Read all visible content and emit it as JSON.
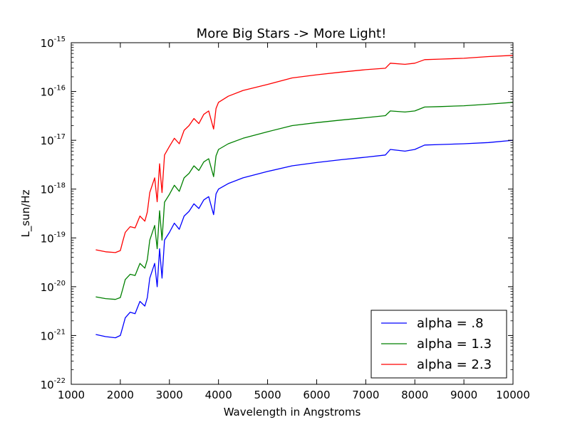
{
  "chart_data": {
    "type": "line",
    "title": "More Big Stars -> More Light!",
    "xlabel": "Wavelength in Angstroms",
    "ylabel": "L_sun/Hz",
    "xlim": [
      1000,
      10000
    ],
    "ylim": [
      1e-22,
      1e-15
    ],
    "yscale": "log",
    "grid": false,
    "legend_position": "bottom-right",
    "xticks": [
      1000,
      2000,
      3000,
      4000,
      5000,
      6000,
      7000,
      8000,
      9000,
      10000
    ],
    "xtick_labels": [
      "1000",
      "2000",
      "3000",
      "4000",
      "5000",
      "6000",
      "7000",
      "8000",
      "9000",
      "10000"
    ],
    "yticks": [
      {
        "base": "10",
        "exp": "-22",
        "value": 1e-22
      },
      {
        "base": "10",
        "exp": "-21",
        "value": 1e-21
      },
      {
        "base": "10",
        "exp": "-20",
        "value": 1e-20
      },
      {
        "base": "10",
        "exp": "-19",
        "value": 1e-19
      },
      {
        "base": "10",
        "exp": "-18",
        "value": 1e-18
      },
      {
        "base": "10",
        "exp": "-17",
        "value": 1e-17
      },
      {
        "base": "10",
        "exp": "-16",
        "value": 1e-16
      },
      {
        "base": "10",
        "exp": "-15",
        "value": 1e-15
      }
    ],
    "x": [
      1500,
      1700,
      1900,
      2000,
      2050,
      2100,
      2200,
      2300,
      2400,
      2500,
      2550,
      2600,
      2700,
      2750,
      2800,
      2850,
      2900,
      3000,
      3100,
      3200,
      3300,
      3400,
      3500,
      3600,
      3700,
      3800,
      3900,
      3950,
      4000,
      4200,
      4500,
      5000,
      5500,
      6000,
      6500,
      7000,
      7400,
      7500,
      7800,
      8000,
      8200,
      8500,
      9000,
      9500,
      10000
    ],
    "series": [
      {
        "name": "alpha = .8",
        "color": "#0000ff",
        "values": [
          1.05e-21,
          9.5e-22,
          9e-22,
          1e-21,
          1.5e-21,
          2.3e-21,
          3e-21,
          2.8e-21,
          5e-21,
          4e-21,
          6e-21,
          1.5e-20,
          3e-20,
          1e-20,
          6e-20,
          1.5e-20,
          9e-20,
          1.3e-19,
          2e-19,
          1.5e-19,
          2.8e-19,
          3.5e-19,
          5e-19,
          4e-19,
          6e-19,
          7e-19,
          3e-19,
          8e-19,
          1e-18,
          1.3e-18,
          1.7e-18,
          2.3e-18,
          3e-18,
          3.5e-18,
          4e-18,
          4.5e-18,
          5e-18,
          6.5e-18,
          6e-18,
          6.5e-18,
          8e-18,
          8.2e-18,
          8.5e-18,
          9e-18,
          1e-17
        ]
      },
      {
        "name": "alpha = 1.3",
        "color": "#008000",
        "values": [
          6.2e-21,
          5.7e-21,
          5.5e-21,
          6e-21,
          9e-21,
          1.4e-20,
          1.8e-20,
          1.7e-20,
          3e-20,
          2.4e-20,
          3.6e-20,
          9e-20,
          1.8e-19,
          6e-20,
          3.6e-19,
          9e-20,
          5.4e-19,
          7.8e-19,
          1.2e-18,
          9e-19,
          1.7e-18,
          2.1e-18,
          3e-18,
          2.4e-18,
          3.6e-18,
          4.2e-18,
          1.8e-18,
          4.8e-18,
          6.5e-18,
          8.5e-18,
          1.1e-17,
          1.5e-17,
          2e-17,
          2.3e-17,
          2.6e-17,
          2.9e-17,
          3.2e-17,
          4e-17,
          3.8e-17,
          4e-17,
          4.8e-17,
          4.9e-17,
          5.1e-17,
          5.5e-17,
          6e-17
        ]
      },
      {
        "name": "alpha = 2.3",
        "color": "#ff0000",
        "values": [
          5.7e-20,
          5.2e-20,
          5e-20,
          5.5e-20,
          8.5e-20,
          1.3e-19,
          1.7e-19,
          1.6e-19,
          2.8e-19,
          2.2e-19,
          3.4e-19,
          8.5e-19,
          1.7e-18,
          5.5e-19,
          3.3e-18,
          8.5e-19,
          5e-18,
          7.5e-18,
          1.1e-17,
          8.5e-18,
          1.6e-17,
          2e-17,
          2.8e-17,
          2.2e-17,
          3.4e-17,
          4e-17,
          1.7e-17,
          4.5e-17,
          6e-17,
          8e-17,
          1.05e-16,
          1.4e-16,
          1.9e-16,
          2.2e-16,
          2.5e-16,
          2.8e-16,
          3e-16,
          3.8e-16,
          3.6e-16,
          3.8e-16,
          4.5e-16,
          4.6e-16,
          4.8e-16,
          5.2e-16,
          5.5e-16
        ]
      }
    ]
  }
}
